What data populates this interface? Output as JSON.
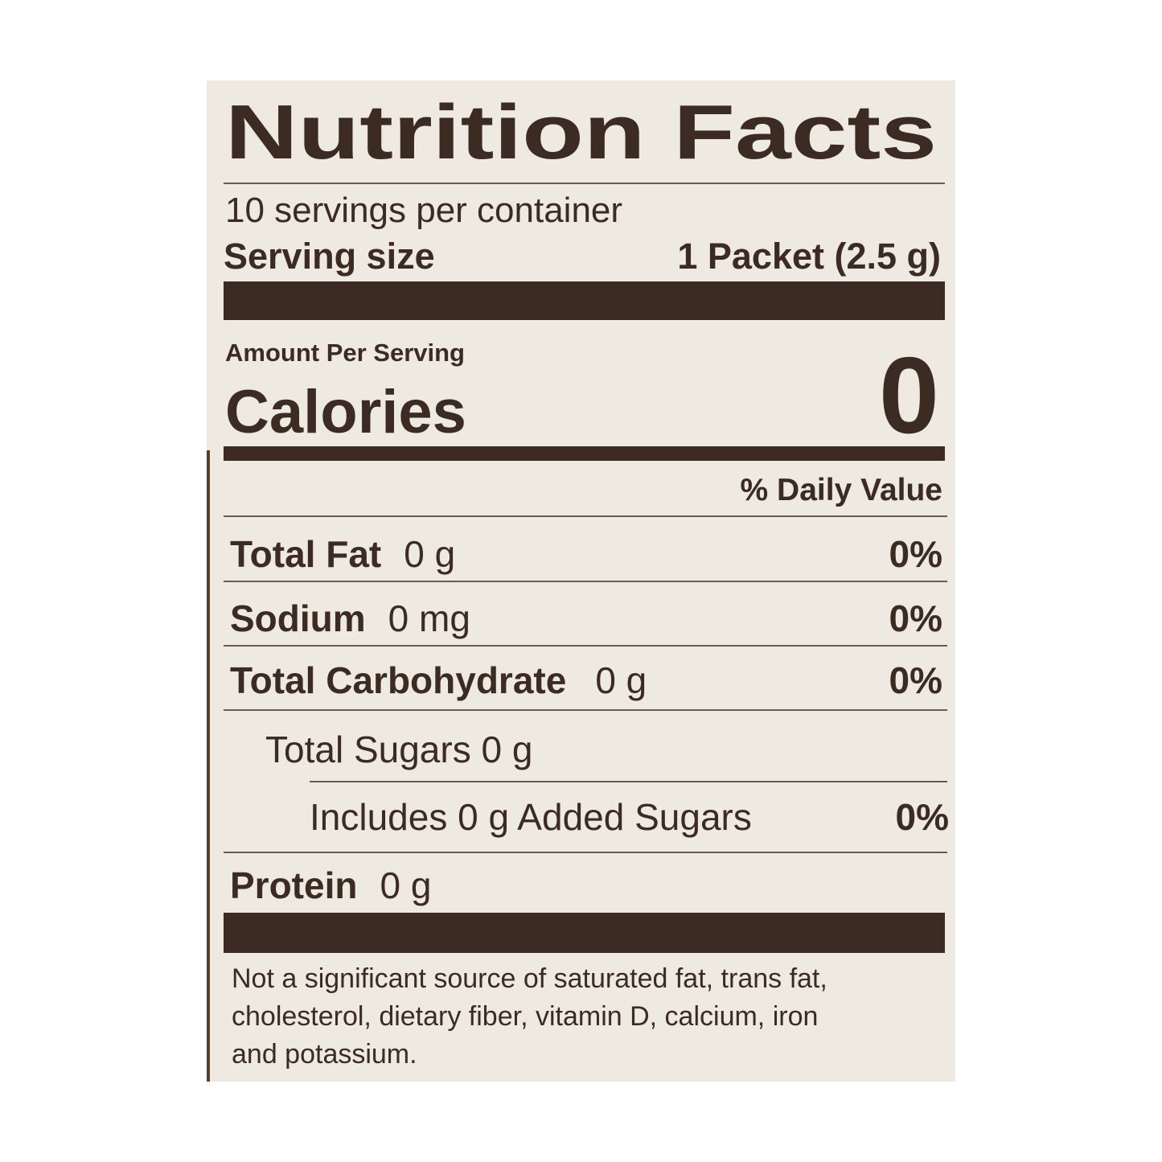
{
  "title": "Nutrition Facts",
  "servings": "10 servings per container",
  "serving_size": {
    "label": "Serving size",
    "value": "1 Packet (2.5 g)"
  },
  "amount_per_serving": "Amount Per Serving",
  "calories": {
    "label": "Calories",
    "value": 0
  },
  "daily_value_header": "% Daily Value",
  "nutrients": [
    {
      "name": "Total Fat",
      "amount": "0 g",
      "dv": "0%"
    },
    {
      "name": "Sodium",
      "amount": "0 mg",
      "dv": "0%"
    },
    {
      "name": "Total Carbohydrate",
      "amount": "0 g",
      "dv": "0%"
    },
    {
      "text": "Total Sugars 0 g"
    },
    {
      "text": "Includes 0 g Added Sugars",
      "dv": "0%"
    },
    {
      "name": "Protein",
      "amount": "0 g"
    }
  ],
  "footnote": [
    "Not a significant source of saturated fat, trans fat,",
    "cholesterol, dietary fiber, vitamin D, calcium, iron",
    "and potassium."
  ]
}
